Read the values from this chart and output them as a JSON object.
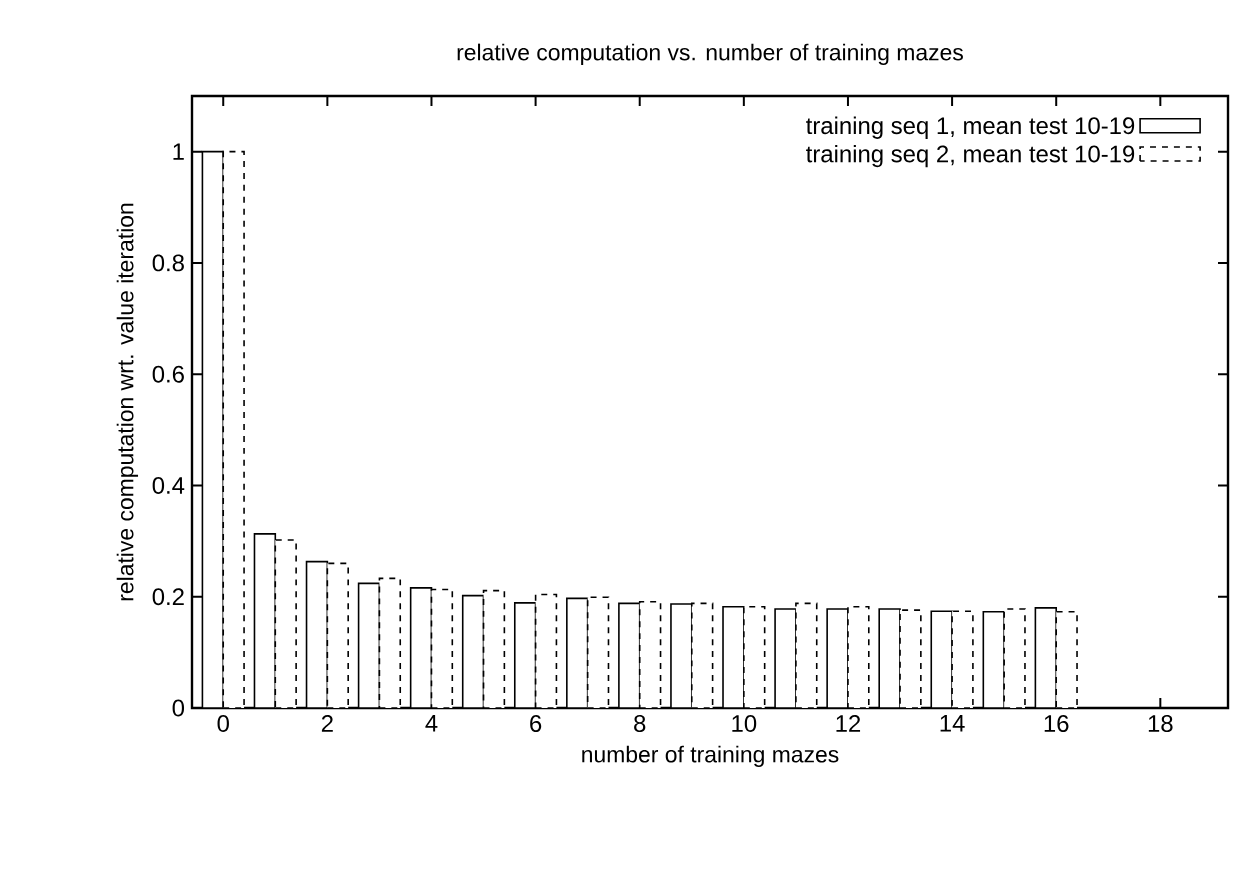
{
  "chart_data": {
    "type": "bar",
    "title": "relative computation vs. number of training mazes",
    "xlabel": "number of training mazes",
    "ylabel": "relative computation wrt. value iteration",
    "x": [
      0,
      1,
      2,
      3,
      4,
      5,
      6,
      7,
      8,
      9,
      10,
      11,
      12,
      13,
      14,
      15,
      16
    ],
    "series": [
      {
        "name": "training seq 1, mean test 10-19",
        "color": "#000000",
        "line_style": "solid",
        "values": [
          1.0,
          0.313,
          0.263,
          0.224,
          0.216,
          0.202,
          0.189,
          0.197,
          0.188,
          0.187,
          0.182,
          0.178,
          0.178,
          0.178,
          0.174,
          0.173,
          0.18
        ]
      },
      {
        "name": "training seq 2, mean test 10-19",
        "color": "#000000",
        "line_style": "dashed",
        "values": [
          1.0,
          0.302,
          0.26,
          0.233,
          0.213,
          0.211,
          0.204,
          0.199,
          0.191,
          0.188,
          0.182,
          0.188,
          0.182,
          0.176,
          0.174,
          0.178,
          0.173
        ]
      }
    ],
    "xlim": [
      -0.6,
      19.3
    ],
    "ylim": [
      0,
      1.1
    ],
    "xticks": [
      0,
      2,
      4,
      6,
      8,
      10,
      12,
      14,
      16,
      18
    ],
    "yticks": [
      0,
      0.2,
      0.4,
      0.6,
      0.8,
      1
    ],
    "grid": false,
    "legend": "top right"
  }
}
